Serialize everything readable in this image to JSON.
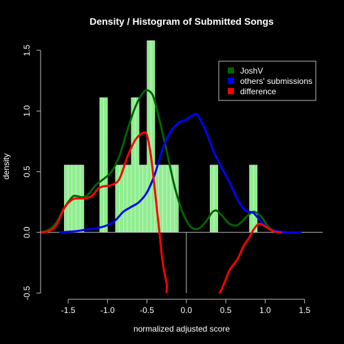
{
  "chart_data": {
    "type": "histogram",
    "title": "Density / Histogram of Submitted Songs",
    "xlabel": "normalized adjusted score",
    "ylabel": "density",
    "xlim": [
      -1.85,
      1.73
    ],
    "ylim": [
      -0.5,
      1.58
    ],
    "x_ticks": [
      "-1.5",
      "-1.0",
      "-0.5",
      "0.0",
      "0.5",
      "1.0",
      "1.5"
    ],
    "x_tick_values": [
      -1.5,
      -1.0,
      -0.5,
      0.0,
      0.5,
      1.0,
      1.5
    ],
    "y_ticks": [
      "-0.5",
      "0.0",
      "0.5",
      "1.0",
      "1.5"
    ],
    "y_tick_values": [
      -0.5,
      0.0,
      0.5,
      1.0,
      1.5
    ],
    "legend_position": "top-right",
    "colors": {
      "background": "#000000",
      "histogram": "#90EE90",
      "JoshV": "#006400",
      "others": "#0000FF",
      "difference": "#FF0000",
      "axis": "#BEBEBE"
    },
    "histogram": {
      "bin_width": 0.05,
      "bars": [
        {
          "x0": -1.55,
          "x1": -1.5,
          "density": 0.555
        },
        {
          "x0": -1.5,
          "x1": -1.45,
          "density": 0.555
        },
        {
          "x0": -1.45,
          "x1": -1.4,
          "density": 0.555
        },
        {
          "x0": -1.4,
          "x1": -1.35,
          "density": 0.555
        },
        {
          "x0": -1.35,
          "x1": -1.3,
          "density": 0.555
        },
        {
          "x0": -1.1,
          "x1": -1.05,
          "density": 1.11
        },
        {
          "x0": -1.05,
          "x1": -1.0,
          "density": 1.11
        },
        {
          "x0": -0.9,
          "x1": -0.85,
          "density": 0.555
        },
        {
          "x0": -0.85,
          "x1": -0.8,
          "density": 0.555
        },
        {
          "x0": -0.8,
          "x1": -0.75,
          "density": 0.555
        },
        {
          "x0": -0.75,
          "x1": -0.7,
          "density": 0.555
        },
        {
          "x0": -0.7,
          "x1": -0.65,
          "density": 1.11
        },
        {
          "x0": -0.65,
          "x1": -0.6,
          "density": 1.11
        },
        {
          "x0": -0.6,
          "x1": -0.55,
          "density": 0.555
        },
        {
          "x0": -0.55,
          "x1": -0.5,
          "density": 0.555
        },
        {
          "x0": -0.5,
          "x1": -0.45,
          "density": 1.58
        },
        {
          "x0": -0.45,
          "x1": -0.4,
          "density": 1.58
        },
        {
          "x0": -0.4,
          "x1": -0.35,
          "density": 0.555
        },
        {
          "x0": -0.35,
          "x1": -0.3,
          "density": 0.555
        },
        {
          "x0": -0.3,
          "x1": -0.25,
          "density": 0.555
        },
        {
          "x0": -0.25,
          "x1": -0.2,
          "density": 0.555
        },
        {
          "x0": -0.2,
          "x1": -0.15,
          "density": 0.555
        },
        {
          "x0": -0.15,
          "x1": -0.1,
          "density": 0.555
        },
        {
          "x0": 0.3,
          "x1": 0.35,
          "density": 0.555
        },
        {
          "x0": 0.35,
          "x1": 0.4,
          "density": 0.555
        },
        {
          "x0": 0.8,
          "x1": 0.85,
          "density": 0.555
        },
        {
          "x0": 0.85,
          "x1": 0.9,
          "density": 0.555
        }
      ]
    },
    "series": [
      {
        "name": "JoshV",
        "color": "#006400",
        "points": [
          [
            -1.85,
            0.0
          ],
          [
            -1.75,
            0.02
          ],
          [
            -1.65,
            0.08
          ],
          [
            -1.55,
            0.2
          ],
          [
            -1.45,
            0.29
          ],
          [
            -1.4,
            0.3
          ],
          [
            -1.32,
            0.29
          ],
          [
            -1.25,
            0.31
          ],
          [
            -1.15,
            0.39
          ],
          [
            -1.05,
            0.44
          ],
          [
            -0.95,
            0.5
          ],
          [
            -0.85,
            0.63
          ],
          [
            -0.75,
            0.84
          ],
          [
            -0.65,
            1.03
          ],
          [
            -0.55,
            1.15
          ],
          [
            -0.49,
            1.17
          ],
          [
            -0.42,
            1.12
          ],
          [
            -0.35,
            0.95
          ],
          [
            -0.25,
            0.67
          ],
          [
            -0.15,
            0.38
          ],
          [
            -0.05,
            0.17
          ],
          [
            0.05,
            0.05
          ],
          [
            0.15,
            0.03
          ],
          [
            0.25,
            0.09
          ],
          [
            0.32,
            0.16
          ],
          [
            0.38,
            0.18
          ],
          [
            0.45,
            0.14
          ],
          [
            0.55,
            0.07
          ],
          [
            0.65,
            0.06
          ],
          [
            0.75,
            0.12
          ],
          [
            0.85,
            0.17
          ],
          [
            0.95,
            0.13
          ],
          [
            1.05,
            0.04
          ],
          [
            1.15,
            0.01
          ],
          [
            1.25,
            0.0
          ]
        ]
      },
      {
        "name": "others' submissions",
        "color": "#0000FF",
        "points": [
          [
            -1.6,
            0.0
          ],
          [
            -1.5,
            0.005
          ],
          [
            -1.4,
            0.01
          ],
          [
            -1.3,
            0.02
          ],
          [
            -1.2,
            0.03
          ],
          [
            -1.1,
            0.04
          ],
          [
            -1.0,
            0.06
          ],
          [
            -0.9,
            0.1
          ],
          [
            -0.8,
            0.17
          ],
          [
            -0.7,
            0.21
          ],
          [
            -0.6,
            0.25
          ],
          [
            -0.5,
            0.33
          ],
          [
            -0.4,
            0.48
          ],
          [
            -0.3,
            0.69
          ],
          [
            -0.2,
            0.83
          ],
          [
            -0.1,
            0.9
          ],
          [
            0.0,
            0.93
          ],
          [
            0.1,
            0.97
          ],
          [
            0.15,
            0.96
          ],
          [
            0.25,
            0.83
          ],
          [
            0.35,
            0.66
          ],
          [
            0.45,
            0.53
          ],
          [
            0.55,
            0.41
          ],
          [
            0.65,
            0.27
          ],
          [
            0.75,
            0.18
          ],
          [
            0.85,
            0.16
          ],
          [
            0.95,
            0.09
          ],
          [
            1.05,
            0.03
          ],
          [
            1.15,
            0.01
          ],
          [
            1.3,
            0.0
          ],
          [
            1.45,
            0.0
          ]
        ]
      },
      {
        "name": "difference",
        "color": "#FF0000",
        "points": [
          [
            -1.85,
            0.0
          ],
          [
            -1.75,
            0.01
          ],
          [
            -1.65,
            0.06
          ],
          [
            -1.55,
            0.2
          ],
          [
            -1.45,
            0.27
          ],
          [
            -1.37,
            0.28
          ],
          [
            -1.3,
            0.28
          ],
          [
            -1.2,
            0.3
          ],
          [
            -1.12,
            0.36
          ],
          [
            -1.05,
            0.38
          ],
          [
            -0.95,
            0.39
          ],
          [
            -0.85,
            0.44
          ],
          [
            -0.75,
            0.62
          ],
          [
            -0.65,
            0.76
          ],
          [
            -0.55,
            0.82
          ],
          [
            -0.5,
            0.8
          ],
          [
            -0.45,
            0.63
          ],
          [
            -0.4,
            0.35
          ],
          [
            -0.35,
            0.05
          ],
          [
            -0.3,
            -0.25
          ],
          [
            -0.25,
            -0.42
          ],
          [
            -0.2,
            -0.56
          ],
          [
            0.3,
            -0.56
          ],
          [
            0.35,
            -0.52
          ],
          [
            0.42,
            -0.5
          ],
          [
            0.48,
            -0.42
          ],
          [
            0.55,
            -0.31
          ],
          [
            0.65,
            -0.22
          ],
          [
            0.72,
            -0.12
          ],
          [
            0.8,
            -0.04
          ],
          [
            0.85,
            0.02
          ],
          [
            0.92,
            0.07
          ],
          [
            1.0,
            0.05
          ],
          [
            1.1,
            0.01
          ],
          [
            1.2,
            0.0
          ]
        ]
      }
    ],
    "vertical_line_x": 0.0,
    "legend": [
      {
        "label": "JoshV",
        "color": "#006400"
      },
      {
        "label": "others' submissions",
        "color": "#0000FF"
      },
      {
        "label": "difference",
        "color": "#FF0000"
      }
    ]
  }
}
